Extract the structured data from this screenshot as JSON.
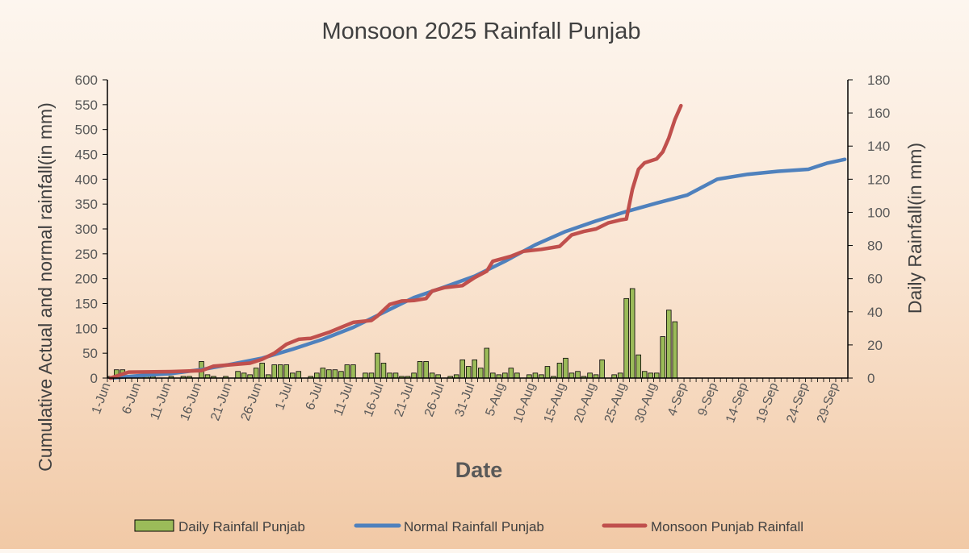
{
  "chart_data": {
    "type": "bar+line",
    "title": "Monsoon 2025 Rainfall Punjab",
    "xlabel": "Date",
    "ylabel_left": "Cumulative  Actual and normal rainfall(in mm)",
    "ylabel_right": "Daily Rainfall(in mm)",
    "ylim_left": [
      0,
      600
    ],
    "ylim_right": [
      0,
      180
    ],
    "yticks_left": [
      0,
      50,
      100,
      150,
      200,
      250,
      300,
      350,
      400,
      450,
      500,
      550,
      600
    ],
    "yticks_right": [
      0,
      20,
      40,
      60,
      80,
      100,
      120,
      140,
      160,
      180
    ],
    "x_tick_labels": [
      "1-Jun",
      "6-Jun",
      "11-Jun",
      "16-Jun",
      "21-Jun",
      "26-Jun",
      "1-Jul",
      "6-Jul",
      "11-Jul",
      "16-Jul",
      "21-Jul",
      "26-Jul",
      "31-Jul",
      "5-Aug",
      "10-Aug",
      "15-Aug",
      "20-Aug",
      "25-Aug",
      "30-Aug",
      "4-Sep",
      "9-Sep",
      "14-Sep",
      "19-Sep",
      "24-Sep",
      "29-Sep"
    ],
    "x_tick_day_index": [
      0,
      5,
      10,
      15,
      20,
      25,
      30,
      35,
      40,
      45,
      50,
      55,
      60,
      65,
      70,
      75,
      80,
      85,
      90,
      95,
      100,
      105,
      110,
      115,
      120
    ],
    "num_days": 122,
    "legend_position": "bottom",
    "series": [
      {
        "name": "Daily Rainfall Punjab",
        "type": "bar",
        "axis": "right",
        "color": "#9bbb59",
        "border": "#000000",
        "values": [
          1,
          5,
          5,
          1,
          0,
          1,
          1,
          1,
          0,
          0,
          1,
          0,
          1,
          1,
          0,
          10,
          2,
          1,
          0,
          1,
          0,
          4,
          3,
          2,
          6,
          9,
          2,
          8,
          8,
          8,
          3,
          4,
          0,
          1,
          3,
          6,
          5,
          5,
          4,
          8,
          8,
          0,
          3,
          3,
          15,
          9,
          3,
          3,
          1,
          1,
          3,
          10,
          10,
          3,
          2,
          0,
          1,
          2,
          11,
          7,
          11,
          6,
          18,
          3,
          2,
          3,
          6,
          3,
          0,
          2,
          3,
          2,
          7,
          1,
          9,
          12,
          3,
          4,
          1,
          3,
          2,
          11,
          0,
          2,
          3,
          48,
          54,
          14,
          4,
          3,
          3,
          25,
          41,
          34,
          0,
          0,
          0,
          0,
          0,
          0,
          0,
          0,
          0,
          0,
          0,
          0,
          0,
          0,
          0,
          0,
          0,
          0,
          0,
          0,
          0,
          0,
          0,
          0,
          0,
          0,
          0,
          0
        ]
      },
      {
        "name": "Normal Rainfall Punjab",
        "type": "line",
        "axis": "left",
        "color": "#4f81bd",
        "points": [
          [
            0,
            0
          ],
          [
            5,
            5
          ],
          [
            10,
            9
          ],
          [
            15,
            17
          ],
          [
            20,
            28
          ],
          [
            25,
            40
          ],
          [
            30,
            58
          ],
          [
            35,
            78
          ],
          [
            40,
            102
          ],
          [
            45,
            132
          ],
          [
            50,
            162
          ],
          [
            55,
            183
          ],
          [
            60,
            205
          ],
          [
            65,
            235
          ],
          [
            70,
            268
          ],
          [
            75,
            295
          ],
          [
            80,
            316
          ],
          [
            85,
            335
          ],
          [
            90,
            352
          ],
          [
            95,
            368
          ],
          [
            100,
            400
          ],
          [
            105,
            410
          ],
          [
            110,
            416
          ],
          [
            115,
            420
          ],
          [
            118,
            432
          ],
          [
            121,
            440
          ]
        ]
      },
      {
        "name": "Monsoon Punjab Rainfall",
        "type": "line",
        "axis": "left",
        "color": "#c0504d",
        "points": [
          [
            0,
            0
          ],
          [
            3,
            12
          ],
          [
            10,
            13
          ],
          [
            15,
            15
          ],
          [
            17,
            24
          ],
          [
            20,
            27
          ],
          [
            23,
            30
          ],
          [
            25,
            38
          ],
          [
            27,
            50
          ],
          [
            29,
            68
          ],
          [
            31,
            78
          ],
          [
            33,
            80
          ],
          [
            36,
            92
          ],
          [
            38,
            102
          ],
          [
            40,
            112
          ],
          [
            43,
            116
          ],
          [
            44,
            125
          ],
          [
            46,
            148
          ],
          [
            48,
            155
          ],
          [
            50,
            156
          ],
          [
            52,
            160
          ],
          [
            53,
            175
          ],
          [
            55,
            182
          ],
          [
            58,
            186
          ],
          [
            60,
            202
          ],
          [
            62,
            215
          ],
          [
            63,
            235
          ],
          [
            66,
            245
          ],
          [
            68,
            255
          ],
          [
            71,
            259
          ],
          [
            74,
            265
          ],
          [
            76,
            288
          ],
          [
            78,
            295
          ],
          [
            80,
            300
          ],
          [
            82,
            312
          ],
          [
            84,
            318
          ],
          [
            85,
            320
          ],
          [
            86,
            380
          ],
          [
            87,
            420
          ],
          [
            88,
            433
          ],
          [
            90,
            441
          ],
          [
            91,
            455
          ],
          [
            92,
            483
          ],
          [
            93,
            520
          ],
          [
            94,
            548
          ]
        ]
      }
    ]
  }
}
